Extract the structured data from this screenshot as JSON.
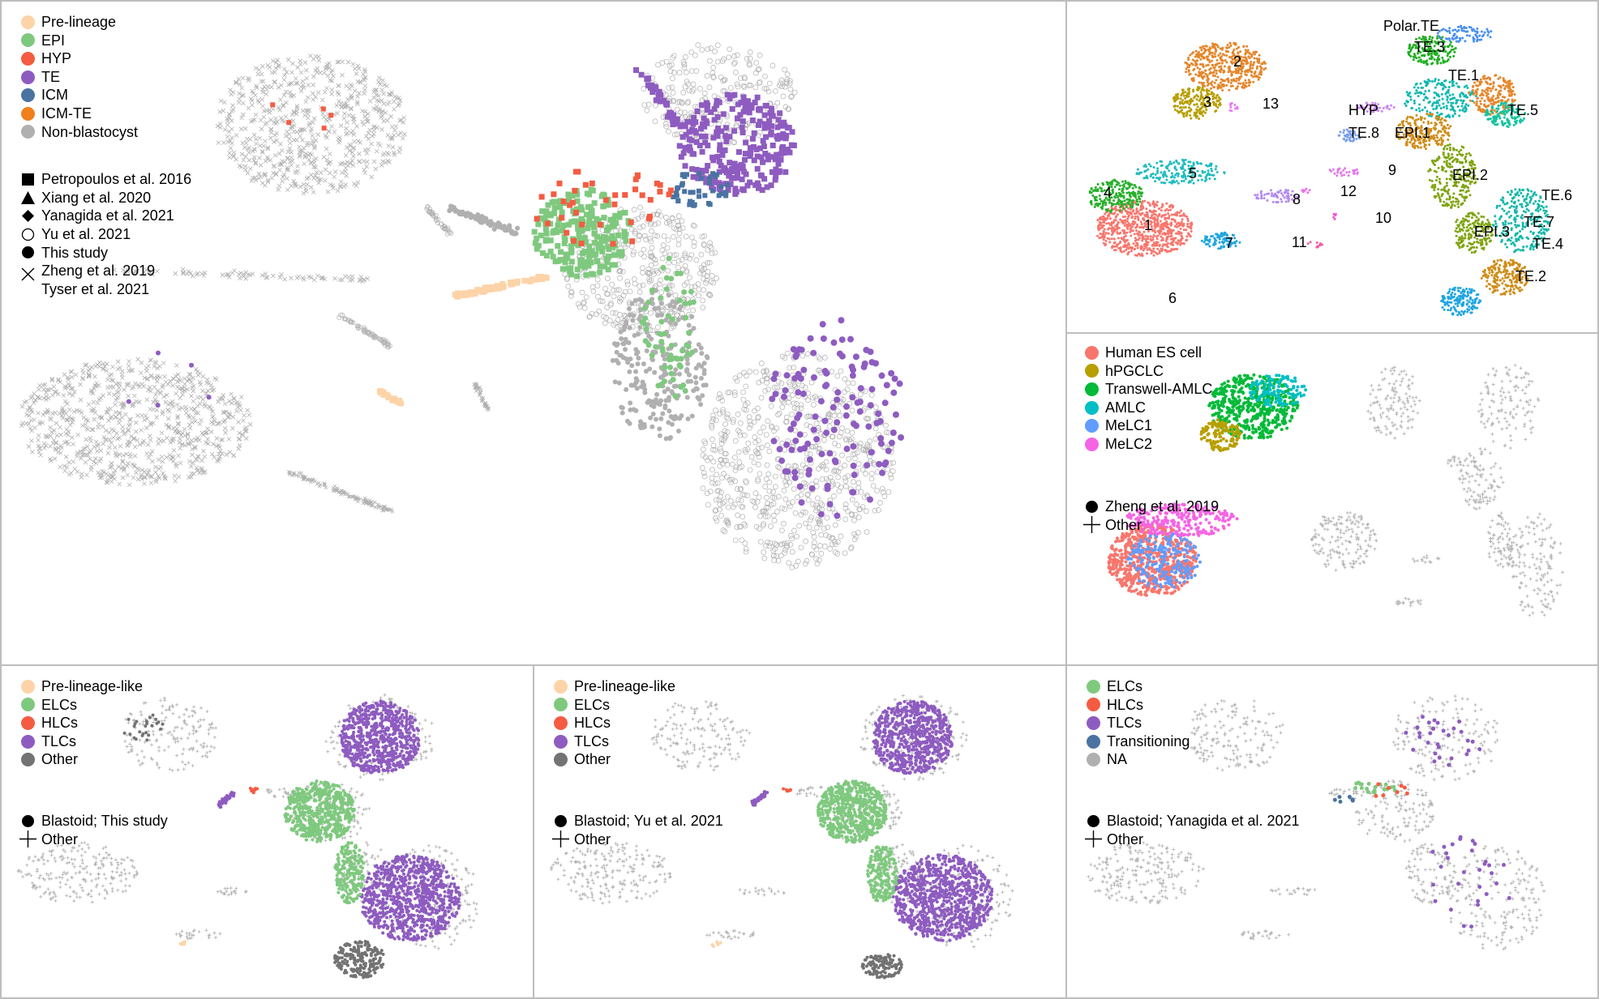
{
  "panels": {
    "main": {
      "lineage_legend": [
        {
          "label": "Pre-lineage",
          "color": "#fdd3a8"
        },
        {
          "label": "EPI",
          "color": "#7fc97f"
        },
        {
          "label": "HYP",
          "color": "#f45c42"
        },
        {
          "label": "TE",
          "color": "#8e5cc0"
        },
        {
          "label": "ICM",
          "color": "#4a73a1"
        },
        {
          "label": "ICM-TE",
          "color": "#f07f1c"
        },
        {
          "label": "Non-blastocyst",
          "color": "#b0b0b0"
        }
      ],
      "study_legend": [
        {
          "label": "Petropoulos et al. 2016",
          "shape": "square"
        },
        {
          "label": "Xiang et al. 2020",
          "shape": "triangle"
        },
        {
          "label": "Yanagida et al. 2021",
          "shape": "diamond"
        },
        {
          "label": "Yu et al. 2021",
          "shape": "open-circle"
        },
        {
          "label": "This study",
          "shape": "filled-circle"
        },
        {
          "label": "Zheng et al. 2019",
          "shape": "cross"
        },
        {
          "label": "Tyser et al. 2021",
          "shape": "none"
        }
      ]
    },
    "clusters": {
      "labels": [
        "1",
        "2",
        "3",
        "4",
        "5",
        "6",
        "7",
        "8",
        "9",
        "10",
        "11",
        "12",
        "13",
        "Polar.TE",
        "TE.1",
        "TE.2",
        "TE.3",
        "TE.4",
        "TE.5",
        "TE.6",
        "TE.7",
        "TE.8",
        "HYP",
        "EPI.1",
        "EPI.2",
        "EPI.3"
      ]
    },
    "cell_types": {
      "legend": [
        {
          "label": "Human ES cell",
          "color": "#f8766d"
        },
        {
          "label": "hPGCLC",
          "color": "#b79f00"
        },
        {
          "label": "Transwell-AMLC",
          "color": "#00ba38"
        },
        {
          "label": "AMLC",
          "color": "#00bfc4"
        },
        {
          "label": "MeLC1",
          "color": "#619cff"
        },
        {
          "label": "MeLC2",
          "color": "#f564e3"
        }
      ],
      "shape_legend": [
        {
          "label": "Zheng et al. 2019",
          "shape": "filled-circle"
        },
        {
          "label": "Other",
          "shape": "plus"
        }
      ]
    },
    "blastoid_this": {
      "legend": [
        {
          "label": "Pre-lineage-like",
          "color": "#fdd3a8"
        },
        {
          "label": "ELCs",
          "color": "#7fc97f"
        },
        {
          "label": "HLCs",
          "color": "#f45c42"
        },
        {
          "label": "TLCs",
          "color": "#8e5cc0"
        },
        {
          "label": "Other",
          "color": "#737373"
        }
      ],
      "shape_legend": [
        {
          "label": "Blastoid; This study",
          "shape": "filled-circle"
        },
        {
          "label": "Other",
          "shape": "plus"
        }
      ]
    },
    "blastoid_yu": {
      "legend": [
        {
          "label": "Pre-lineage-like",
          "color": "#fdd3a8"
        },
        {
          "label": "ELCs",
          "color": "#7fc97f"
        },
        {
          "label": "HLCs",
          "color": "#f45c42"
        },
        {
          "label": "TLCs",
          "color": "#8e5cc0"
        },
        {
          "label": "Other",
          "color": "#737373"
        }
      ],
      "shape_legend": [
        {
          "label": "Blastoid; Yu et al. 2021",
          "shape": "filled-circle"
        },
        {
          "label": "Other",
          "shape": "plus"
        }
      ]
    },
    "blastoid_yanagida": {
      "legend": [
        {
          "label": "ELCs",
          "color": "#7fc97f"
        },
        {
          "label": "HLCs",
          "color": "#f45c42"
        },
        {
          "label": "TLCs",
          "color": "#8e5cc0"
        },
        {
          "label": "Transitioning",
          "color": "#4a73a1"
        },
        {
          "label": "NA",
          "color": "#b0b0b0"
        }
      ],
      "shape_legend": [
        {
          "label": "Blastoid; Yanagida et al. 2021",
          "shape": "filled-circle"
        },
        {
          "label": "Other",
          "shape": "plus"
        }
      ]
    }
  },
  "chart_data": [
    {
      "type": "scatter",
      "title": "",
      "series": [
        {
          "name": "Pre-lineage",
          "values": []
        },
        {
          "name": "EPI",
          "values": []
        },
        {
          "name": "HYP",
          "values": []
        },
        {
          "name": "TE",
          "values": []
        },
        {
          "name": "ICM",
          "values": []
        },
        {
          "name": "ICM-TE",
          "values": []
        },
        {
          "name": "Non-blastocyst",
          "values": []
        }
      ],
      "axes": "none"
    },
    {
      "type": "scatter",
      "cluster_labels": [
        "1",
        "2",
        "3",
        "4",
        "5",
        "6",
        "7",
        "8",
        "9",
        "10",
        "11",
        "12",
        "13",
        "Polar.TE",
        "TE.1",
        "TE.2",
        "TE.3",
        "TE.4",
        "TE.5",
        "TE.6",
        "TE.7",
        "TE.8",
        "HYP",
        "EPI.1",
        "EPI.2",
        "EPI.3"
      ],
      "axes": "none"
    },
    {
      "type": "scatter",
      "series": [
        {
          "name": "Human ES cell",
          "values": []
        },
        {
          "name": "hPGCLC",
          "values": []
        },
        {
          "name": "Transwell-AMLC",
          "values": []
        },
        {
          "name": "AMLC",
          "values": []
        },
        {
          "name": "MeLC1",
          "values": []
        },
        {
          "name": "MeLC2",
          "values": []
        }
      ],
      "axes": "none"
    },
    {
      "type": "scatter",
      "series": [
        {
          "name": "Pre-lineage-like",
          "values": []
        },
        {
          "name": "ELCs",
          "values": []
        },
        {
          "name": "HLCs",
          "values": []
        },
        {
          "name": "TLCs",
          "values": []
        },
        {
          "name": "Other",
          "values": []
        }
      ],
      "axes": "none"
    },
    {
      "type": "scatter",
      "series": [
        {
          "name": "Pre-lineage-like",
          "values": []
        },
        {
          "name": "ELCs",
          "values": []
        },
        {
          "name": "HLCs",
          "values": []
        },
        {
          "name": "TLCs",
          "values": []
        },
        {
          "name": "Other",
          "values": []
        }
      ],
      "axes": "none"
    },
    {
      "type": "scatter",
      "series": [
        {
          "name": "ELCs",
          "values": []
        },
        {
          "name": "HLCs",
          "values": []
        },
        {
          "name": "TLCs",
          "values": []
        },
        {
          "name": "Transitioning",
          "values": []
        },
        {
          "name": "NA",
          "values": []
        }
      ],
      "axes": "none"
    }
  ]
}
